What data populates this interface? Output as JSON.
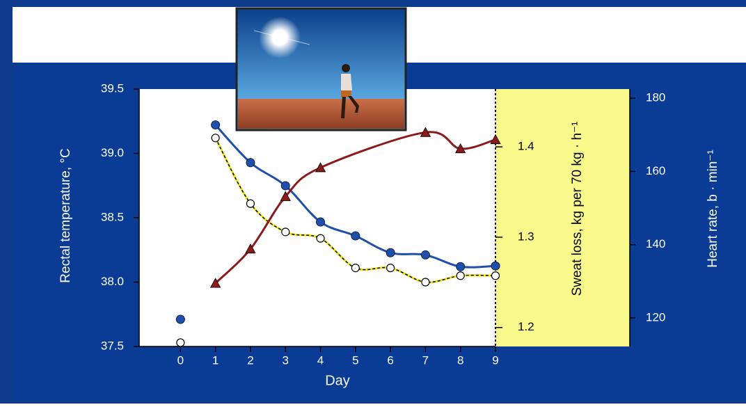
{
  "chart_data": {
    "type": "scatter",
    "xlabel": "Day",
    "ylabel": "Rectal temperature, °C",
    "y2label": "Heart rate, b · min⁻¹",
    "y3label": "Sweat loss, kg per 70 kg · h⁻¹",
    "x": [
      0,
      1,
      2,
      3,
      4,
      5,
      6,
      7,
      8,
      9
    ],
    "xlim": [
      -1.18,
      9
    ],
    "xticks": [
      0,
      1,
      2,
      3,
      4,
      5,
      6,
      7,
      8,
      9
    ],
    "ylim": [
      37.5,
      39.5
    ],
    "yticks": [
      {
        "value": 39.5,
        "label": "39.5"
      },
      {
        "value": 39,
        "label": "39.0"
      },
      {
        "value": 38.5,
        "label": "38.5"
      },
      {
        "value": 38,
        "label": "38.0"
      },
      {
        "value": 37.5,
        "label": "37.5"
      }
    ],
    "y2lim": [
      112.2,
      182.5
    ],
    "y2ticks": [
      120,
      140,
      160,
      180
    ],
    "y3lim": [
      1.179,
      1.464
    ],
    "y3ticks": [
      1.2,
      1.3,
      1.4
    ],
    "series": [
      {
        "axis": "y2",
        "marker": "filled-circle",
        "color": "#1f4fa8",
        "values": [
          119.6,
          172.7,
          162.4,
          156.1,
          146.2,
          142.4,
          137.8,
          137.2,
          134.0,
          134.2
        ]
      },
      {
        "axis": "y",
        "marker": "open-circle",
        "color": "#f2e600",
        "values": [
          37.53,
          39.12,
          38.61,
          38.39,
          38.34,
          38.11,
          38.11,
          38.0,
          38.05,
          38.05
        ]
      },
      {
        "axis": "y3",
        "marker": "triangle",
        "color": "#8b1a1a",
        "values": [
          null,
          1.249,
          1.287,
          1.345,
          1.377,
          null,
          null,
          1.416,
          1.398,
          1.408
        ]
      }
    ]
  }
}
